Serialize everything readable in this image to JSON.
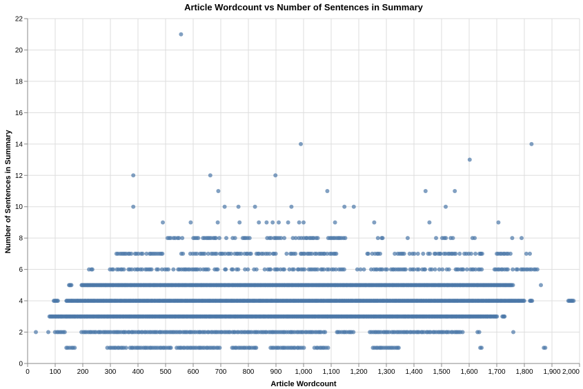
{
  "chart_data": {
    "type": "scatter",
    "title": "Article Wordcount vs Number of Sentences in Summary",
    "xlabel": "Article Wordcount",
    "ylabel": "Number of Sentences in Summary",
    "xlim": [
      0,
      2000
    ],
    "ylim": [
      0,
      22
    ],
    "x_ticks": [
      0,
      100,
      200,
      300,
      400,
      500,
      600,
      700,
      800,
      900,
      1000,
      1100,
      1200,
      1300,
      1400,
      1500,
      1600,
      1700,
      1800,
      1900,
      2000
    ],
    "x_tick_labels": [
      "0",
      "100",
      "200",
      "300",
      "400",
      "500",
      "600",
      "700",
      "800",
      "900",
      "1,000",
      "1,100",
      "1,200",
      "1,300",
      "1,400",
      "1,500",
      "1,600",
      "1,700",
      "1,800",
      "1,900",
      "2,000"
    ],
    "y_ticks": [
      0,
      2,
      4,
      6,
      8,
      10,
      12,
      14,
      16,
      18,
      20,
      22
    ],
    "y_tick_labels": [
      "0",
      "2",
      "4",
      "6",
      "8",
      "10",
      "12",
      "14",
      "16",
      "18",
      "20",
      "22"
    ],
    "grid": true,
    "point_color": "#4c78a8",
    "point_opacity": 0.7,
    "bands": [
      {
        "y": 1,
        "segments": [
          [
            140,
            170
          ],
          [
            290,
            360
          ],
          [
            370,
            520
          ],
          [
            540,
            700
          ],
          [
            740,
            830
          ],
          [
            880,
            1000
          ],
          [
            1040,
            1090
          ],
          [
            1250,
            1350
          ],
          [
            1640,
            1650
          ],
          [
            1870,
            1880
          ]
        ]
      },
      {
        "y": 2,
        "segments": [
          [
            30,
            30
          ],
          [
            75,
            75
          ],
          [
            100,
            140
          ],
          [
            195,
            1080
          ],
          [
            1120,
            1180
          ],
          [
            1240,
            1580
          ],
          [
            1630,
            1640
          ],
          [
            1760,
            1760
          ]
        ]
      },
      {
        "y": 3,
        "segments": [
          [
            80,
            1700
          ],
          [
            1720,
            1730
          ]
        ]
      },
      {
        "y": 4,
        "segments": [
          [
            95,
            110
          ],
          [
            140,
            1800
          ],
          [
            1820,
            1830
          ],
          [
            1960,
            1980
          ]
        ]
      },
      {
        "y": 5,
        "segments": [
          [
            150,
            160
          ],
          [
            195,
            1760
          ],
          [
            1860,
            1860
          ]
        ]
      },
      {
        "y": 6,
        "segments": [
          [
            200,
            255
          ],
          [
            300,
            1150
          ],
          [
            1190,
            1650
          ],
          [
            1680,
            1850
          ]
        ]
      },
      {
        "y": 7,
        "segments": [
          [
            310,
            500
          ],
          [
            540,
            900
          ],
          [
            940,
            1120
          ],
          [
            1230,
            1280
          ],
          [
            1330,
            1650
          ],
          [
            1700,
            1750
          ],
          [
            1800,
            1810
          ]
        ]
      },
      {
        "y": 8,
        "segments": [
          [
            500,
            560
          ],
          [
            600,
            700
          ],
          [
            720,
            760
          ],
          [
            780,
            820
          ],
          [
            870,
            930
          ],
          [
            960,
            1050
          ],
          [
            1090,
            1150
          ],
          [
            1270,
            1290
          ],
          [
            1370,
            1390
          ],
          [
            1480,
            1540
          ],
          [
            1620,
            1630
          ],
          [
            1710,
            1720
          ],
          [
            1790,
            1790
          ]
        ]
      }
    ],
    "points": [
      {
        "x": 556,
        "y": 21
      },
      {
        "x": 990,
        "y": 14
      },
      {
        "x": 1826,
        "y": 14
      },
      {
        "x": 1602,
        "y": 13
      },
      {
        "x": 383,
        "y": 12
      },
      {
        "x": 662,
        "y": 12
      },
      {
        "x": 898,
        "y": 12
      },
      {
        "x": 691,
        "y": 11
      },
      {
        "x": 1086,
        "y": 11
      },
      {
        "x": 1442,
        "y": 11
      },
      {
        "x": 1548,
        "y": 11
      },
      {
        "x": 383,
        "y": 10
      },
      {
        "x": 714,
        "y": 10
      },
      {
        "x": 764,
        "y": 10
      },
      {
        "x": 824,
        "y": 10
      },
      {
        "x": 956,
        "y": 10
      },
      {
        "x": 1148,
        "y": 10
      },
      {
        "x": 1182,
        "y": 10
      },
      {
        "x": 1515,
        "y": 10
      },
      {
        "x": 490,
        "y": 9
      },
      {
        "x": 591,
        "y": 9
      },
      {
        "x": 689,
        "y": 9
      },
      {
        "x": 768,
        "y": 9
      },
      {
        "x": 838,
        "y": 9
      },
      {
        "x": 866,
        "y": 9
      },
      {
        "x": 888,
        "y": 9
      },
      {
        "x": 910,
        "y": 9
      },
      {
        "x": 944,
        "y": 9
      },
      {
        "x": 984,
        "y": 9
      },
      {
        "x": 1000,
        "y": 9
      },
      {
        "x": 1114,
        "y": 9
      },
      {
        "x": 1256,
        "y": 9
      },
      {
        "x": 1456,
        "y": 9
      },
      {
        "x": 1706,
        "y": 9
      },
      {
        "x": 1756,
        "y": 8
      },
      {
        "x": 1612,
        "y": 8
      },
      {
        "x": 1820,
        "y": 7
      },
      {
        "x": 1642,
        "y": 7
      }
    ]
  }
}
